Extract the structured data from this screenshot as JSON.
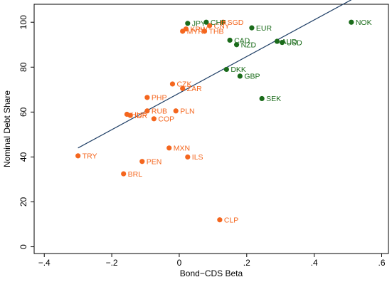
{
  "chart_data": {
    "type": "scatter",
    "xlabel": "Bond−CDS Beta",
    "ylabel": "Nominal Debt Share",
    "xlim": [
      -0.43,
      0.62
    ],
    "ylim": [
      -3,
      108
    ],
    "xticks": [
      -0.4,
      -0.2,
      0,
      0.2,
      0.4,
      0.6
    ],
    "xtick_labels": [
      "−.4",
      "−.2",
      "0",
      ".2",
      ".4",
      ".6"
    ],
    "yticks": [
      0,
      20,
      40,
      60,
      80,
      100
    ],
    "ytick_labels": [
      "0",
      "20",
      "40",
      "60",
      "80",
      "100"
    ],
    "grid": false,
    "legend": "none",
    "colors": {
      "emerging": "#F4661E",
      "developed": "#1A6B1A",
      "fit_line": "#1F3F66"
    },
    "fit_line": {
      "x": [
        -0.3,
        0.51
      ],
      "y": [
        44,
        110
      ]
    },
    "series": [
      {
        "group": "emerging",
        "points": [
          {
            "label": "TRY",
            "x": -0.3,
            "y": 40.5
          },
          {
            "label": "BRL",
            "x": -0.165,
            "y": 32.5
          },
          {
            "label": "PEN",
            "x": -0.11,
            "y": 38
          },
          {
            "label": "MXN",
            "x": -0.03,
            "y": 44
          },
          {
            "label": "ILS",
            "x": 0.025,
            "y": 40
          },
          {
            "label": "CLP",
            "x": 0.12,
            "y": 12
          },
          {
            "label": "HUF",
            "x": -0.155,
            "y": 59
          },
          {
            "label": "IDR",
            "x": -0.145,
            "y": 58.5
          },
          {
            "label": "RUB",
            "x": -0.095,
            "y": 60.5
          },
          {
            "label": "COP",
            "x": -0.075,
            "y": 57
          },
          {
            "label": "PLN",
            "x": -0.01,
            "y": 60.5
          },
          {
            "label": "PHP",
            "x": -0.095,
            "y": 66.5
          },
          {
            "label": "CZK",
            "x": -0.02,
            "y": 72.5
          },
          {
            "label": "ZAR",
            "x": 0.01,
            "y": 70.5
          },
          {
            "label": "MYR",
            "x": 0.01,
            "y": 96
          },
          {
            "label": "KRW",
            "x": 0.02,
            "y": 97
          },
          {
            "label": "THB",
            "x": 0.075,
            "y": 96
          },
          {
            "label": "SGD",
            "x": 0.13,
            "y": 100
          },
          {
            "label": "CNY",
            "x": 0.09,
            "y": 98.5
          }
        ]
      },
      {
        "group": "developed",
        "points": [
          {
            "label": "JPY",
            "x": 0.025,
            "y": 99.5
          },
          {
            "label": "CHF",
            "x": 0.08,
            "y": 100
          },
          {
            "label": "EUR",
            "x": 0.215,
            "y": 97.5
          },
          {
            "label": "CAD",
            "x": 0.15,
            "y": 92
          },
          {
            "label": "NZD",
            "x": 0.17,
            "y": 90
          },
          {
            "label": "AUD",
            "x": 0.29,
            "y": 91.5
          },
          {
            "label": "USD",
            "x": 0.305,
            "y": 91
          },
          {
            "label": "NOK",
            "x": 0.51,
            "y": 100
          },
          {
            "label": "DKK",
            "x": 0.14,
            "y": 79
          },
          {
            "label": "GBP",
            "x": 0.18,
            "y": 76
          },
          {
            "label": "SEK",
            "x": 0.245,
            "y": 66
          }
        ]
      }
    ]
  }
}
